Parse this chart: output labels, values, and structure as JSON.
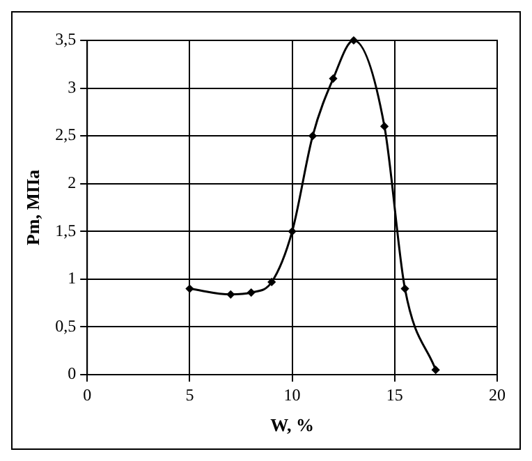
{
  "chart_data": {
    "type": "line",
    "xlabel": "W, %",
    "ylabel": "Pm, МПа",
    "x": [
      5,
      7,
      8,
      9,
      10,
      11,
      12,
      13,
      14.5,
      15.5,
      17
    ],
    "series": [
      {
        "color": "#000000",
        "values": [
          0.9,
          0.84,
          0.86,
          0.97,
          1.5,
          2.5,
          3.1,
          3.5,
          2.6,
          0.9,
          0.05
        ]
      }
    ],
    "xlim": [
      0,
      20
    ],
    "xticks": [
      0,
      5,
      10,
      15,
      20
    ],
    "ylim": [
      0,
      3.5
    ],
    "yticks": [
      0,
      {
        "value": 0.5,
        "label": "0,5"
      },
      1,
      {
        "value": 1.5,
        "label": "1,5"
      },
      2,
      {
        "value": 2.5,
        "label": "2,5"
      },
      3,
      {
        "value": 3.5,
        "label": "3,5"
      }
    ],
    "grid": true,
    "legend": false,
    "marker": "diamond",
    "line_style": "solid"
  }
}
